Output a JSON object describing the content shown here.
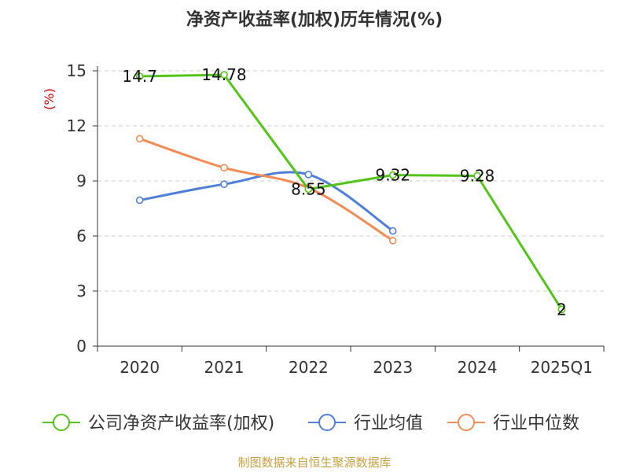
{
  "chart_data": {
    "type": "line",
    "title": "净资产收益率(加权)历年情况(%)",
    "ylabel": "(%)",
    "xlabel": "",
    "categories": [
      "2020",
      "2021",
      "2022",
      "2023",
      "2024",
      "2025Q1"
    ],
    "ylim": [
      0,
      15
    ],
    "yticks": [
      0,
      3,
      6,
      9,
      12,
      15
    ],
    "grid": "horizontal-dashed",
    "legend_position": "bottom",
    "series": [
      {
        "name": "公司净资产收益率(加权)",
        "color": "#52c41a",
        "values": [
          14.7,
          14.78,
          8.55,
          9.32,
          9.28,
          2
        ],
        "labels": [
          "14.7",
          "14.78",
          "8.55",
          "9.32",
          "9.28",
          "2"
        ]
      },
      {
        "name": "行业均值",
        "color": "#4f7fd9",
        "values": [
          7.95,
          8.82,
          9.35,
          6.28,
          null,
          null
        ]
      },
      {
        "name": "行业中位数",
        "color": "#f28b54",
        "values": [
          11.3,
          9.72,
          8.62,
          5.75,
          null,
          null
        ]
      }
    ],
    "colors": {
      "axis": "#333333",
      "grid": "#cccccc",
      "unit": "#cc0000"
    }
  },
  "footer": {
    "source": "制图数据来自恒生聚源数据库",
    "source_color": "#c8a040"
  }
}
